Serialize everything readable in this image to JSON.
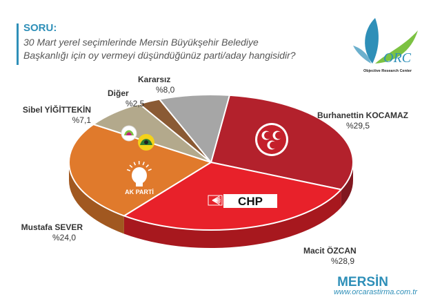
{
  "question": {
    "label": "SORU:",
    "line1": "30 Mart yerel seçimlerinde Mersin Büyükşehir Belediye",
    "line2": "Başkanlığı için oy vermeyi düşündüğünüz parti/aday hangisidir?"
  },
  "logo": {
    "caption": "Objective Research Center"
  },
  "footer": {
    "city": "MERSİN",
    "url": "www.orcarastirma.com.tr"
  },
  "party_badges": {
    "chp": "CHP",
    "akp": "AK PARTİ"
  },
  "colors": {
    "mhp": "#b3212c",
    "chp": "#e8212a",
    "akp": "#e07a2c",
    "sibel": "#b3a98c",
    "diger": "#8a5a34",
    "kararsiz": "#a6a6a6",
    "accent": "#2e8fb8"
  },
  "chart_data": {
    "type": "pie",
    "title": "",
    "slices": [
      {
        "key": "mhp",
        "name": "Burhanettin KOCAMAZ",
        "value": 29.5,
        "label": "%29,5",
        "color": "#b3212c"
      },
      {
        "key": "chp",
        "name": "Macit ÖZCAN",
        "value": 28.9,
        "label": "%28,9",
        "color": "#e8212a"
      },
      {
        "key": "akp",
        "name": "Mustafa SEVER",
        "value": 24.0,
        "label": "%24,0",
        "color": "#e07a2c"
      },
      {
        "key": "sibel",
        "name": "Sibel YİĞİTTEKİN",
        "value": 7.1,
        "label": "%7,1",
        "color": "#b3a98c"
      },
      {
        "key": "diger",
        "name": "Diğer",
        "value": 2.5,
        "label": "%2,5",
        "color": "#8a5a34"
      },
      {
        "key": "kararsiz",
        "name": "Kararsız",
        "value": 8.0,
        "label": "%8,0",
        "color": "#a6a6a6"
      }
    ],
    "legend": "none"
  }
}
